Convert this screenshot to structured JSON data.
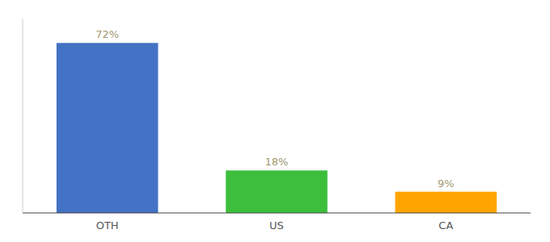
{
  "chart_data": {
    "type": "bar",
    "categories": [
      "OTH",
      "US",
      "CA"
    ],
    "values": [
      72,
      18,
      9
    ],
    "value_labels": [
      "72%",
      "18%",
      "9%"
    ],
    "colors": [
      "#4472C4",
      "#3DBF3D",
      "#FFA500"
    ],
    "ylim": [
      0,
      82
    ],
    "data_labels": true,
    "tick_labels": "x",
    "grid": false
  }
}
